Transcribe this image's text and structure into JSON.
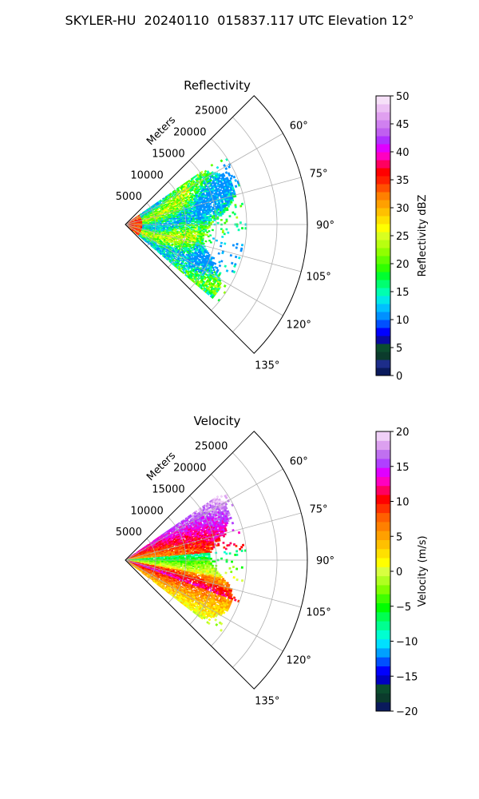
{
  "title": "SKYLER-HU  20240110  015837.117 UTC Elevation 12°",
  "chart_data": [
    {
      "type": "polar-sector",
      "title": "Reflectivity",
      "radial_label": "Meters",
      "radial_ticks": [
        5000,
        10000,
        15000,
        20000,
        25000
      ],
      "radial_tick_labels": [
        "5000",
        "10000",
        "15000",
        "20000",
        "25000"
      ],
      "rlim": [
        0,
        30000
      ],
      "angle_range_deg": [
        45,
        135
      ],
      "angle_ticks": [
        60,
        75,
        90,
        105,
        120,
        135
      ],
      "angle_tick_labels": [
        "60°",
        "75°",
        "90°",
        "105°",
        "120°",
        "135°"
      ],
      "grid": true,
      "field_extent_m": 20000,
      "colorbar": {
        "label": "Reflectivity dBZ",
        "range": [
          0,
          50
        ],
        "ticks": [
          0,
          5,
          10,
          15,
          20,
          25,
          30,
          35,
          40,
          45,
          50
        ],
        "tick_labels": [
          "0",
          "5",
          "10",
          "15",
          "20",
          "25",
          "30",
          "35",
          "40",
          "45",
          "50"
        ],
        "colors": [
          "#0a1a5c",
          "#1d2d8a",
          "#0b3b2c",
          "#0b4d2e",
          "#0a0aa0",
          "#0000ff",
          "#0050ff",
          "#0090ff",
          "#00c0ff",
          "#00e8e8",
          "#00ffb0",
          "#00ff70",
          "#00ff30",
          "#30ff00",
          "#60ff00",
          "#90ff00",
          "#b8ff10",
          "#d8ff20",
          "#ffff00",
          "#ffe000",
          "#ffc000",
          "#ffa000",
          "#ff8000",
          "#ff5000",
          "#ff2000",
          "#ff0000",
          "#ff0060",
          "#ff00c0",
          "#e000ff",
          "#b030ff",
          "#c060f0",
          "#d080f0",
          "#e0a0f0",
          "#ecc0f4",
          "#f6e0f8"
        ]
      }
    },
    {
      "type": "polar-sector",
      "title": "Velocity",
      "radial_label": "Meters",
      "radial_ticks": [
        5000,
        10000,
        15000,
        20000,
        25000
      ],
      "radial_tick_labels": [
        "5000",
        "10000",
        "15000",
        "20000",
        "25000"
      ],
      "rlim": [
        0,
        30000
      ],
      "angle_range_deg": [
        45,
        135
      ],
      "angle_ticks": [
        60,
        75,
        90,
        105,
        120,
        135
      ],
      "angle_tick_labels": [
        "60°",
        "75°",
        "90°",
        "105°",
        "120°",
        "135°"
      ],
      "grid": true,
      "field_extent_m": 20000,
      "colorbar": {
        "label": "Velocity (m/s)",
        "range": [
          -20,
          20
        ],
        "ticks": [
          -20,
          -15,
          -10,
          -5,
          0,
          5,
          10,
          15,
          20
        ],
        "tick_labels": [
          "−20",
          "−15",
          "−10",
          "−5",
          "0",
          "5",
          "10",
          "15",
          "20"
        ],
        "colors": [
          "#0a1a5c",
          "#0b3b2c",
          "#0b4d2e",
          "#0000c0",
          "#0000ff",
          "#0050ff",
          "#00a0ff",
          "#00e0ff",
          "#00ffd0",
          "#00ff90",
          "#00ff50",
          "#00ff00",
          "#40ff00",
          "#80ff00",
          "#b0ff20",
          "#d8ff40",
          "#ffff00",
          "#ffe000",
          "#ffc000",
          "#ffa000",
          "#ff8000",
          "#ff6000",
          "#ff3000",
          "#ff0000",
          "#ff0060",
          "#ff00c0",
          "#e000ff",
          "#b040ff",
          "#c070f0",
          "#dca0f0",
          "#f0d0f8"
        ]
      }
    }
  ]
}
